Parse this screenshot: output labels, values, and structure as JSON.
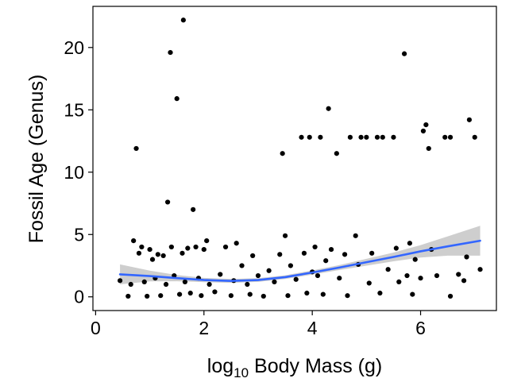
{
  "chart_data": {
    "type": "scatter",
    "title": "",
    "xlabel": "log10 Body Mass (g)",
    "xlabel_parts": {
      "base": "log",
      "sub": "10",
      "rest": " Body Mass (g)"
    },
    "ylabel": "Fossil Age (Genus)",
    "xlim": [
      -0.05,
      7.4
    ],
    "ylim": [
      -1.1,
      23.3
    ],
    "x_ticks": [
      0,
      2,
      4,
      6
    ],
    "y_ticks": [
      0,
      5,
      10,
      15,
      20
    ],
    "grid": false,
    "legend": "none",
    "point_color": "#000000",
    "fit_color": "#3366FF",
    "band_color": "#BEBEBE",
    "points": [
      [
        0.45,
        1.3
      ],
      [
        0.6,
        0.05
      ],
      [
        0.65,
        1.0
      ],
      [
        0.7,
        4.5
      ],
      [
        0.75,
        11.9
      ],
      [
        0.8,
        3.5
      ],
      [
        0.85,
        4.0
      ],
      [
        0.9,
        1.2
      ],
      [
        0.95,
        0.05
      ],
      [
        1.0,
        3.8
      ],
      [
        1.05,
        3.0
      ],
      [
        1.1,
        1.5
      ],
      [
        1.15,
        3.4
      ],
      [
        1.2,
        0.1
      ],
      [
        1.25,
        3.3
      ],
      [
        1.3,
        1.0
      ],
      [
        1.33,
        7.6
      ],
      [
        1.38,
        19.6
      ],
      [
        1.4,
        4.0
      ],
      [
        1.45,
        1.7
      ],
      [
        1.5,
        15.9
      ],
      [
        1.55,
        0.2
      ],
      [
        1.6,
        3.5
      ],
      [
        1.62,
        22.2
      ],
      [
        1.65,
        1.2
      ],
      [
        1.7,
        3.9
      ],
      [
        1.75,
        0.3
      ],
      [
        1.8,
        7.0
      ],
      [
        1.85,
        4.0
      ],
      [
        1.9,
        1.5
      ],
      [
        1.95,
        0.1
      ],
      [
        2.0,
        3.8
      ],
      [
        2.05,
        4.5
      ],
      [
        2.1,
        1.0
      ],
      [
        2.2,
        0.4
      ],
      [
        2.3,
        1.8
      ],
      [
        2.4,
        4.0
      ],
      [
        2.5,
        0.1
      ],
      [
        2.55,
        1.3
      ],
      [
        2.6,
        4.3
      ],
      [
        2.7,
        2.5
      ],
      [
        2.8,
        1.0
      ],
      [
        2.85,
        0.2
      ],
      [
        2.9,
        3.3
      ],
      [
        3.0,
        1.7
      ],
      [
        3.1,
        0.05
      ],
      [
        3.2,
        2.1
      ],
      [
        3.3,
        1.2
      ],
      [
        3.4,
        3.4
      ],
      [
        3.45,
        11.5
      ],
      [
        3.5,
        4.9
      ],
      [
        3.55,
        0.1
      ],
      [
        3.6,
        2.5
      ],
      [
        3.7,
        1.4
      ],
      [
        3.8,
        12.8
      ],
      [
        3.85,
        3.5
      ],
      [
        3.9,
        0.3
      ],
      [
        3.95,
        12.8
      ],
      [
        4.0,
        2.0
      ],
      [
        4.05,
        4.0
      ],
      [
        4.1,
        1.7
      ],
      [
        4.15,
        12.8
      ],
      [
        4.2,
        0.2
      ],
      [
        4.25,
        2.9
      ],
      [
        4.3,
        15.1
      ],
      [
        4.35,
        3.8
      ],
      [
        4.45,
        11.5
      ],
      [
        4.5,
        1.5
      ],
      [
        4.6,
        3.4
      ],
      [
        4.65,
        0.1
      ],
      [
        4.7,
        12.8
      ],
      [
        4.8,
        4.9
      ],
      [
        4.85,
        2.6
      ],
      [
        4.9,
        12.8
      ],
      [
        5.0,
        12.8
      ],
      [
        5.05,
        1.1
      ],
      [
        5.1,
        3.5
      ],
      [
        5.2,
        12.8
      ],
      [
        5.25,
        0.3
      ],
      [
        5.3,
        12.8
      ],
      [
        5.4,
        2.2
      ],
      [
        5.5,
        12.8
      ],
      [
        5.55,
        3.9
      ],
      [
        5.6,
        1.2
      ],
      [
        5.7,
        19.5
      ],
      [
        5.75,
        1.7
      ],
      [
        5.8,
        4.3
      ],
      [
        5.85,
        0.2
      ],
      [
        5.9,
        3.0
      ],
      [
        6.0,
        1.5
      ],
      [
        6.05,
        13.3
      ],
      [
        6.1,
        13.8
      ],
      [
        6.15,
        11.9
      ],
      [
        6.2,
        3.8
      ],
      [
        6.3,
        1.7
      ],
      [
        6.45,
        12.8
      ],
      [
        6.55,
        12.8
      ],
      [
        6.55,
        0.05
      ],
      [
        6.7,
        1.8
      ],
      [
        6.8,
        1.3
      ],
      [
        6.85,
        3.2
      ],
      [
        6.9,
        14.2
      ],
      [
        7.0,
        12.8
      ],
      [
        7.1,
        2.2
      ]
    ],
    "fit_line": [
      [
        0.45,
        1.8
      ],
      [
        1.0,
        1.67
      ],
      [
        1.5,
        1.5
      ],
      [
        2.0,
        1.35
      ],
      [
        2.5,
        1.28
      ],
      [
        3.0,
        1.35
      ],
      [
        3.5,
        1.58
      ],
      [
        4.0,
        1.95
      ],
      [
        4.5,
        2.35
      ],
      [
        5.0,
        2.78
      ],
      [
        5.5,
        3.2
      ],
      [
        6.0,
        3.65
      ],
      [
        6.5,
        4.05
      ],
      [
        7.1,
        4.5
      ]
    ],
    "fit_band_upper": [
      [
        0.45,
        2.6
      ],
      [
        1.0,
        2.1
      ],
      [
        1.5,
        1.75
      ],
      [
        2.0,
        1.52
      ],
      [
        2.5,
        1.44
      ],
      [
        3.0,
        1.5
      ],
      [
        3.5,
        1.73
      ],
      [
        4.0,
        2.12
      ],
      [
        4.5,
        2.55
      ],
      [
        5.0,
        3.05
      ],
      [
        5.5,
        3.55
      ],
      [
        6.0,
        4.15
      ],
      [
        6.5,
        4.85
      ],
      [
        7.1,
        5.7
      ]
    ],
    "fit_band_lower": [
      [
        0.45,
        1.0
      ],
      [
        1.0,
        1.24
      ],
      [
        1.5,
        1.25
      ],
      [
        2.0,
        1.18
      ],
      [
        2.5,
        1.12
      ],
      [
        3.0,
        1.2
      ],
      [
        3.5,
        1.43
      ],
      [
        4.0,
        1.78
      ],
      [
        4.5,
        2.15
      ],
      [
        5.0,
        2.5
      ],
      [
        5.5,
        2.85
      ],
      [
        6.0,
        3.15
      ],
      [
        6.5,
        3.3
      ],
      [
        7.1,
        3.3
      ]
    ]
  }
}
